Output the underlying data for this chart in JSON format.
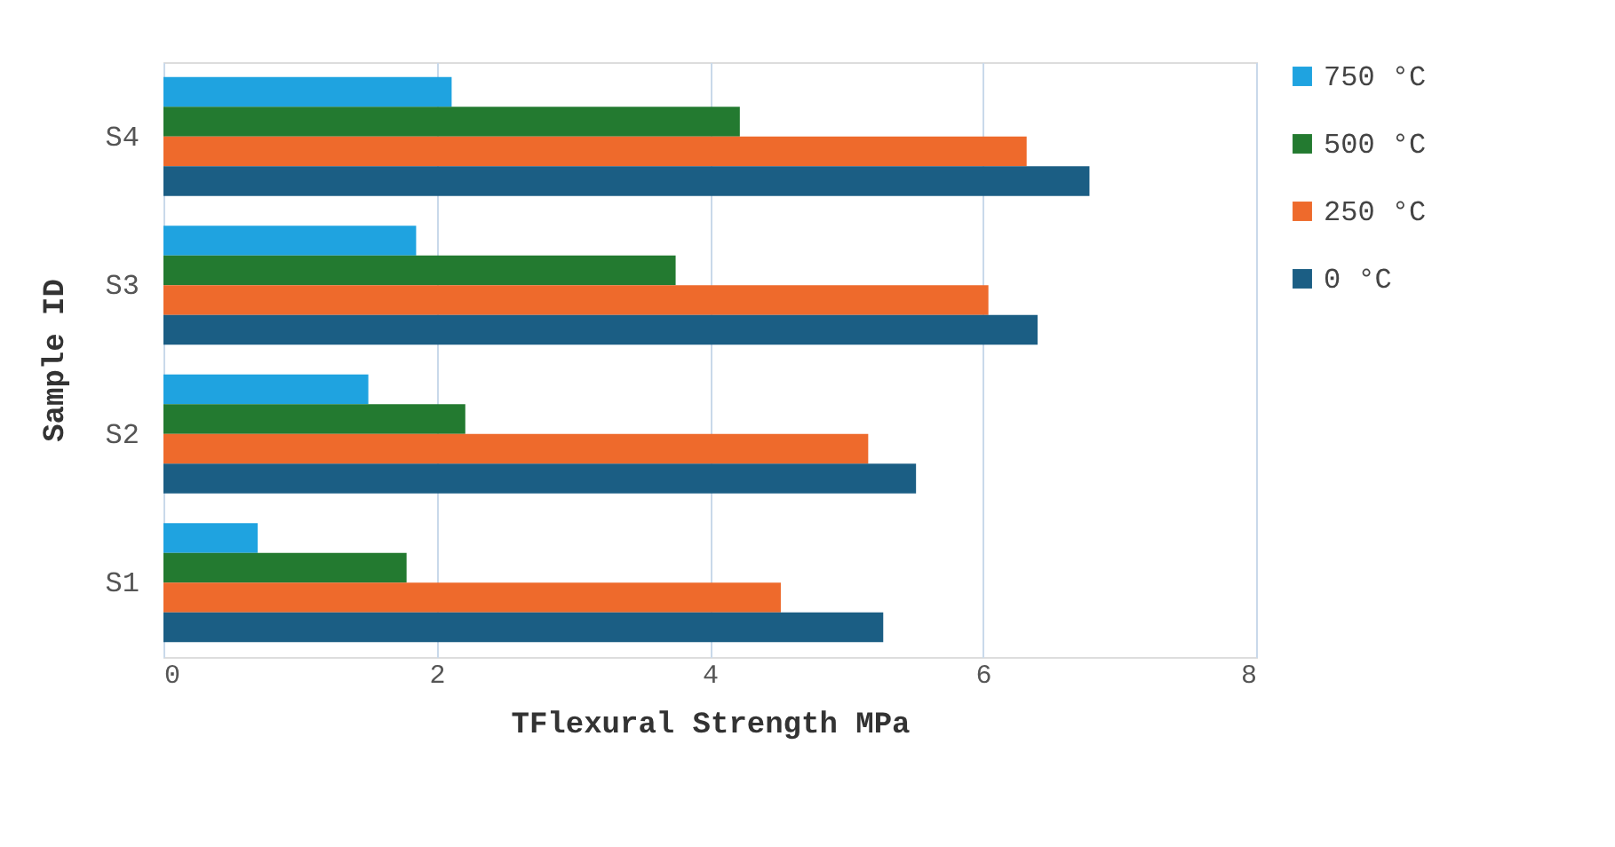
{
  "chart_data": {
    "type": "bar",
    "orientation": "horizontal",
    "xlabel": "TFlexural Strength MPa",
    "ylabel": "Sample ID",
    "categories": [
      "S4",
      "S3",
      "S2",
      "S1"
    ],
    "series": [
      {
        "name": "750 °C",
        "color": "#1fa3e0",
        "values": [
          2.11,
          1.85,
          1.5,
          0.69
        ]
      },
      {
        "name": "500 °C",
        "color": "#237a30",
        "values": [
          4.22,
          3.75,
          2.21,
          1.78
        ]
      },
      {
        "name": "250 °C",
        "color": "#ee6a2c",
        "values": [
          6.32,
          6.04,
          5.16,
          4.52
        ]
      },
      {
        "name": "0 °C",
        "color": "#1b5e84",
        "values": [
          6.78,
          6.4,
          5.51,
          5.27
        ]
      }
    ],
    "xlim": [
      0,
      8
    ],
    "xticks": [
      0,
      2,
      4,
      6,
      8
    ],
    "grid": "x",
    "legend": "right"
  }
}
